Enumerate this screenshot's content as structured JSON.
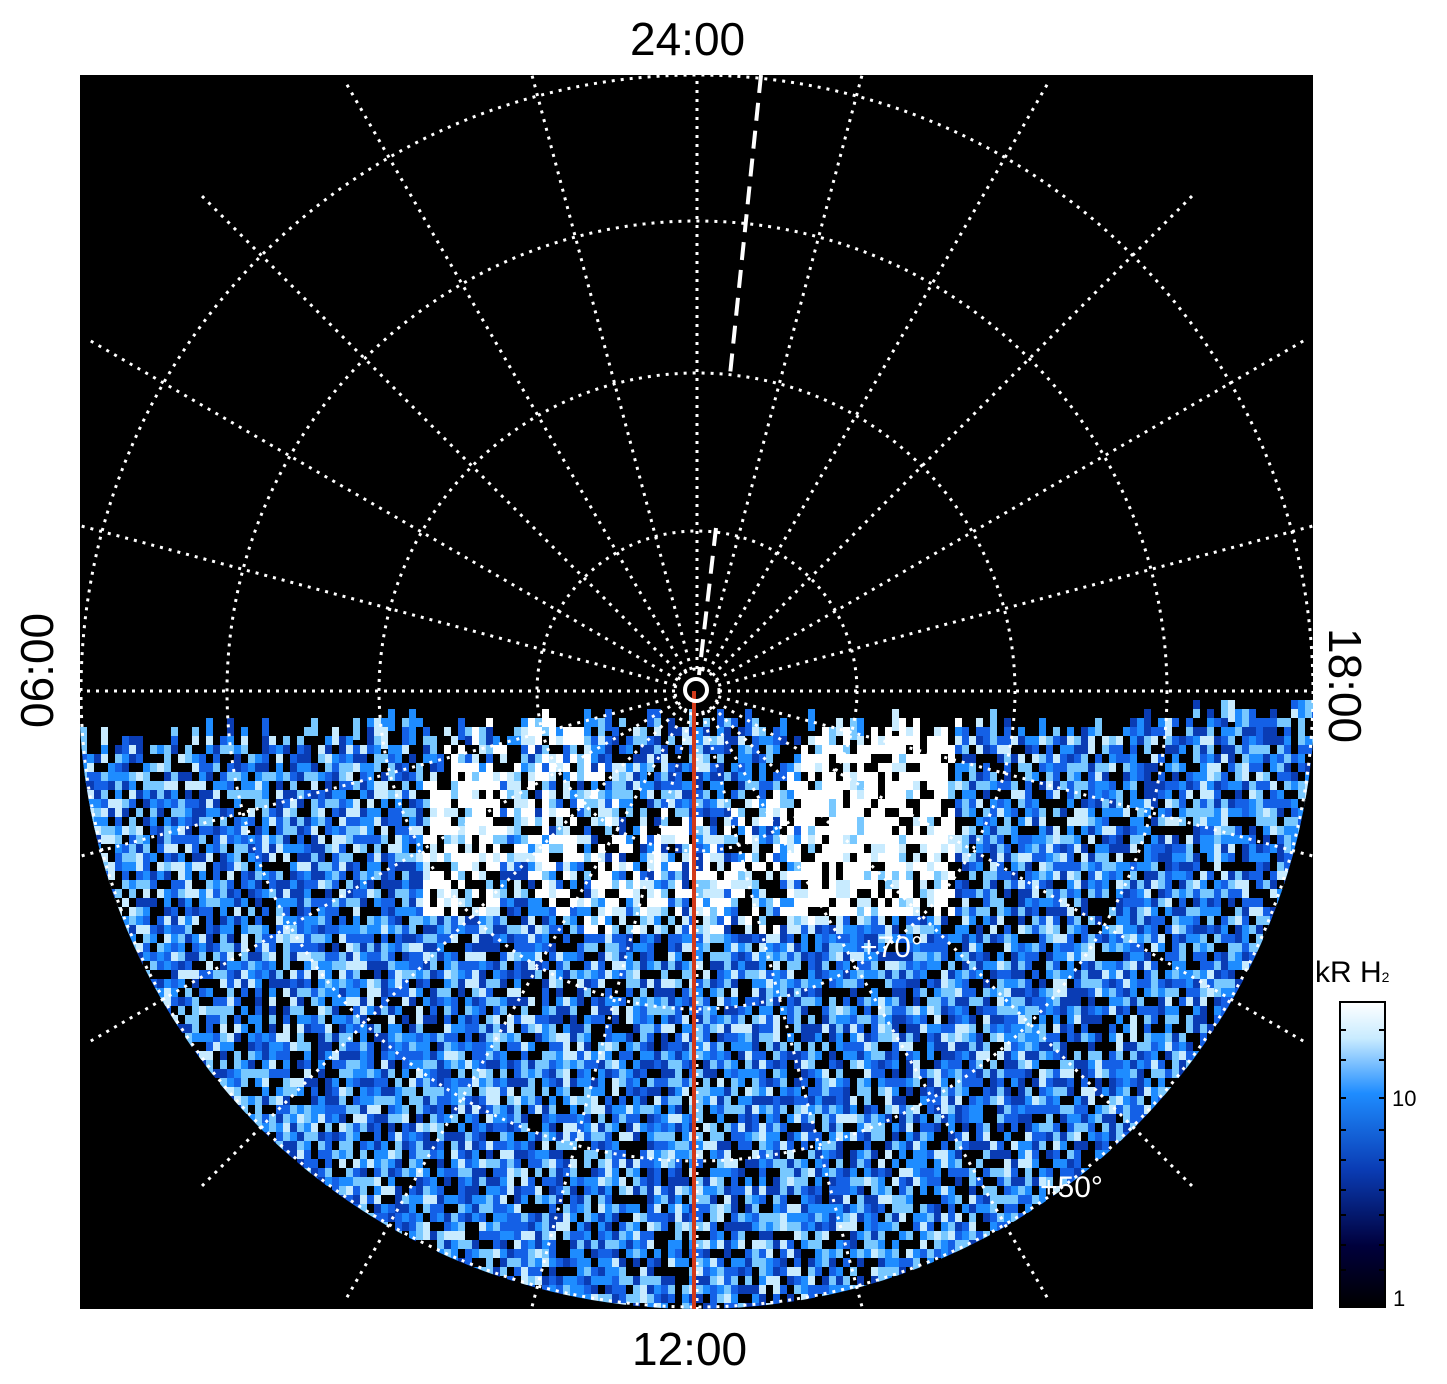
{
  "map": {
    "local_time_labels": {
      "top": "24:00",
      "bottom": "12:00",
      "left": "06:00",
      "right": "18:00"
    },
    "latitude_labels": [
      "+70°",
      "+50°"
    ],
    "background_color": "#000000",
    "grid_color": "#ffffff",
    "noon_meridian_color": "#d23a1a",
    "pole_marker": "circle-icon"
  },
  "colorbar": {
    "title": "kR H",
    "title_subscript": "2",
    "scale": "log",
    "tick_labels": [
      "10",
      "1"
    ],
    "colormap": [
      "#000000",
      "#00003c",
      "#0a3cb4",
      "#1e8cff",
      "#c8ebff",
      "#ffffff"
    ]
  }
}
